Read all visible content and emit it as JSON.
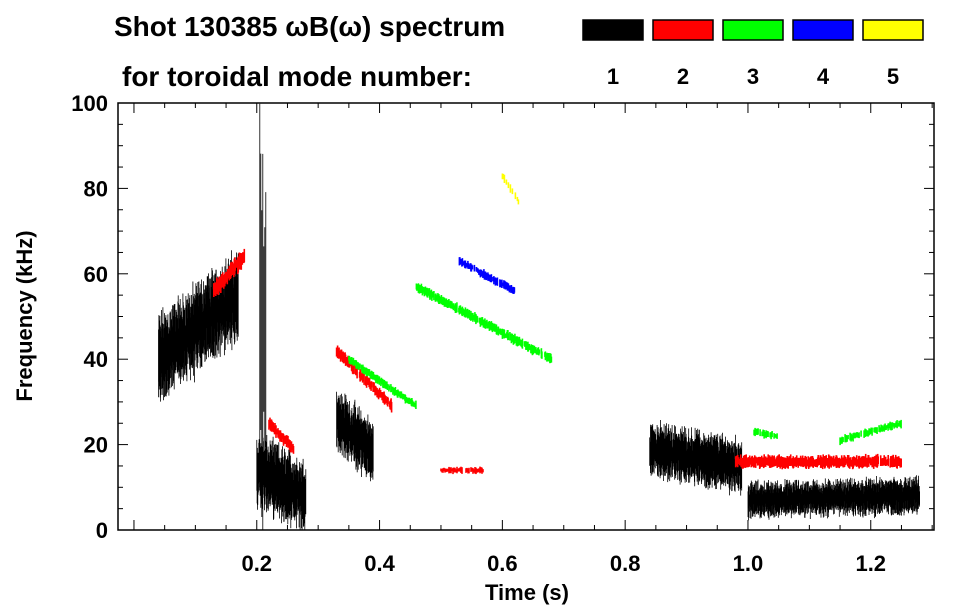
{
  "chart_data": {
    "type": "heatmap",
    "title": "Shot 130385 ωB(ω) spectrum",
    "subtitle": "for toroidal mode number:",
    "xlabel": "Time (s)",
    "ylabel": "Frequency (kHz)",
    "xlim": [
      -0.026,
      1.303
    ],
    "ylim": [
      0,
      100
    ],
    "xticks": [
      "0.2",
      "0.4",
      "0.6",
      "0.8",
      "1.0",
      "1.2"
    ],
    "xtick_values": [
      0.2,
      0.4,
      0.6,
      0.8,
      1.0,
      1.2
    ],
    "yticks": [
      "0",
      "20",
      "40",
      "60",
      "80",
      "100"
    ],
    "ytick_values": [
      0,
      20,
      40,
      60,
      80,
      100
    ],
    "legend": [
      {
        "mode": "1",
        "color": "#000000"
      },
      {
        "mode": "2",
        "color": "#ff0000"
      },
      {
        "mode": "3",
        "color": "#00ff00"
      },
      {
        "mode": "4",
        "color": "#0000ff"
      },
      {
        "mode": "5",
        "color": "#ffff00"
      }
    ],
    "legend_placement": "top-right",
    "activity": [
      {
        "mode": 1,
        "t": [
          0.04,
          0.17
        ],
        "f_center": [
          40,
          55
        ],
        "f_halfwidth": 10,
        "density": 3
      },
      {
        "mode": 1,
        "t": [
          0.205,
          0.215
        ],
        "f_center": [
          50,
          50
        ],
        "f_halfwidth": 48,
        "density": 1
      },
      {
        "mode": 1,
        "t": [
          0.2,
          0.28
        ],
        "f_center": [
          14,
          8
        ],
        "f_halfwidth": 8,
        "density": 3
      },
      {
        "mode": 1,
        "t": [
          0.33,
          0.39
        ],
        "f_center": [
          26,
          18
        ],
        "f_halfwidth": 7,
        "density": 3
      },
      {
        "mode": 1,
        "t": [
          0.84,
          0.99
        ],
        "f_center": [
          19,
          15
        ],
        "f_halfwidth": 6,
        "density": 3
      },
      {
        "mode": 1,
        "t": [
          1.0,
          1.28
        ],
        "f_center": [
          7,
          8
        ],
        "f_halfwidth": 4,
        "density": 3
      },
      {
        "mode": 2,
        "t": [
          0.13,
          0.18
        ],
        "f_center": [
          56,
          64
        ],
        "f_halfwidth": 2,
        "density": 2
      },
      {
        "mode": 2,
        "t": [
          0.22,
          0.26
        ],
        "f_center": [
          25,
          19
        ],
        "f_halfwidth": 1.5,
        "density": 2
      },
      {
        "mode": 2,
        "t": [
          0.33,
          0.42
        ],
        "f_center": [
          42,
          29
        ],
        "f_halfwidth": 1.5,
        "density": 2
      },
      {
        "mode": 2,
        "t": [
          0.5,
          0.57
        ],
        "f_center": [
          14,
          14
        ],
        "f_halfwidth": 0.8,
        "density": 1
      },
      {
        "mode": 2,
        "t": [
          0.98,
          1.25
        ],
        "f_center": [
          16,
          16
        ],
        "f_halfwidth": 1.5,
        "density": 2
      },
      {
        "mode": 3,
        "t": [
          0.35,
          0.46
        ],
        "f_center": [
          40,
          29
        ],
        "f_halfwidth": 1,
        "density": 2
      },
      {
        "mode": 3,
        "t": [
          0.46,
          0.68
        ],
        "f_center": [
          57,
          40
        ],
        "f_halfwidth": 1.2,
        "density": 2
      },
      {
        "mode": 3,
        "t": [
          1.01,
          1.05
        ],
        "f_center": [
          23,
          22
        ],
        "f_halfwidth": 1,
        "density": 1
      },
      {
        "mode": 3,
        "t": [
          1.15,
          1.25
        ],
        "f_center": [
          21,
          25
        ],
        "f_halfwidth": 1,
        "density": 1
      },
      {
        "mode": 4,
        "t": [
          0.53,
          0.62
        ],
        "f_center": [
          63,
          56
        ],
        "f_halfwidth": 1,
        "density": 2
      },
      {
        "mode": 5,
        "t": [
          0.6,
          0.63
        ],
        "f_center": [
          83,
          76
        ],
        "f_halfwidth": 1,
        "density": 1
      }
    ]
  }
}
